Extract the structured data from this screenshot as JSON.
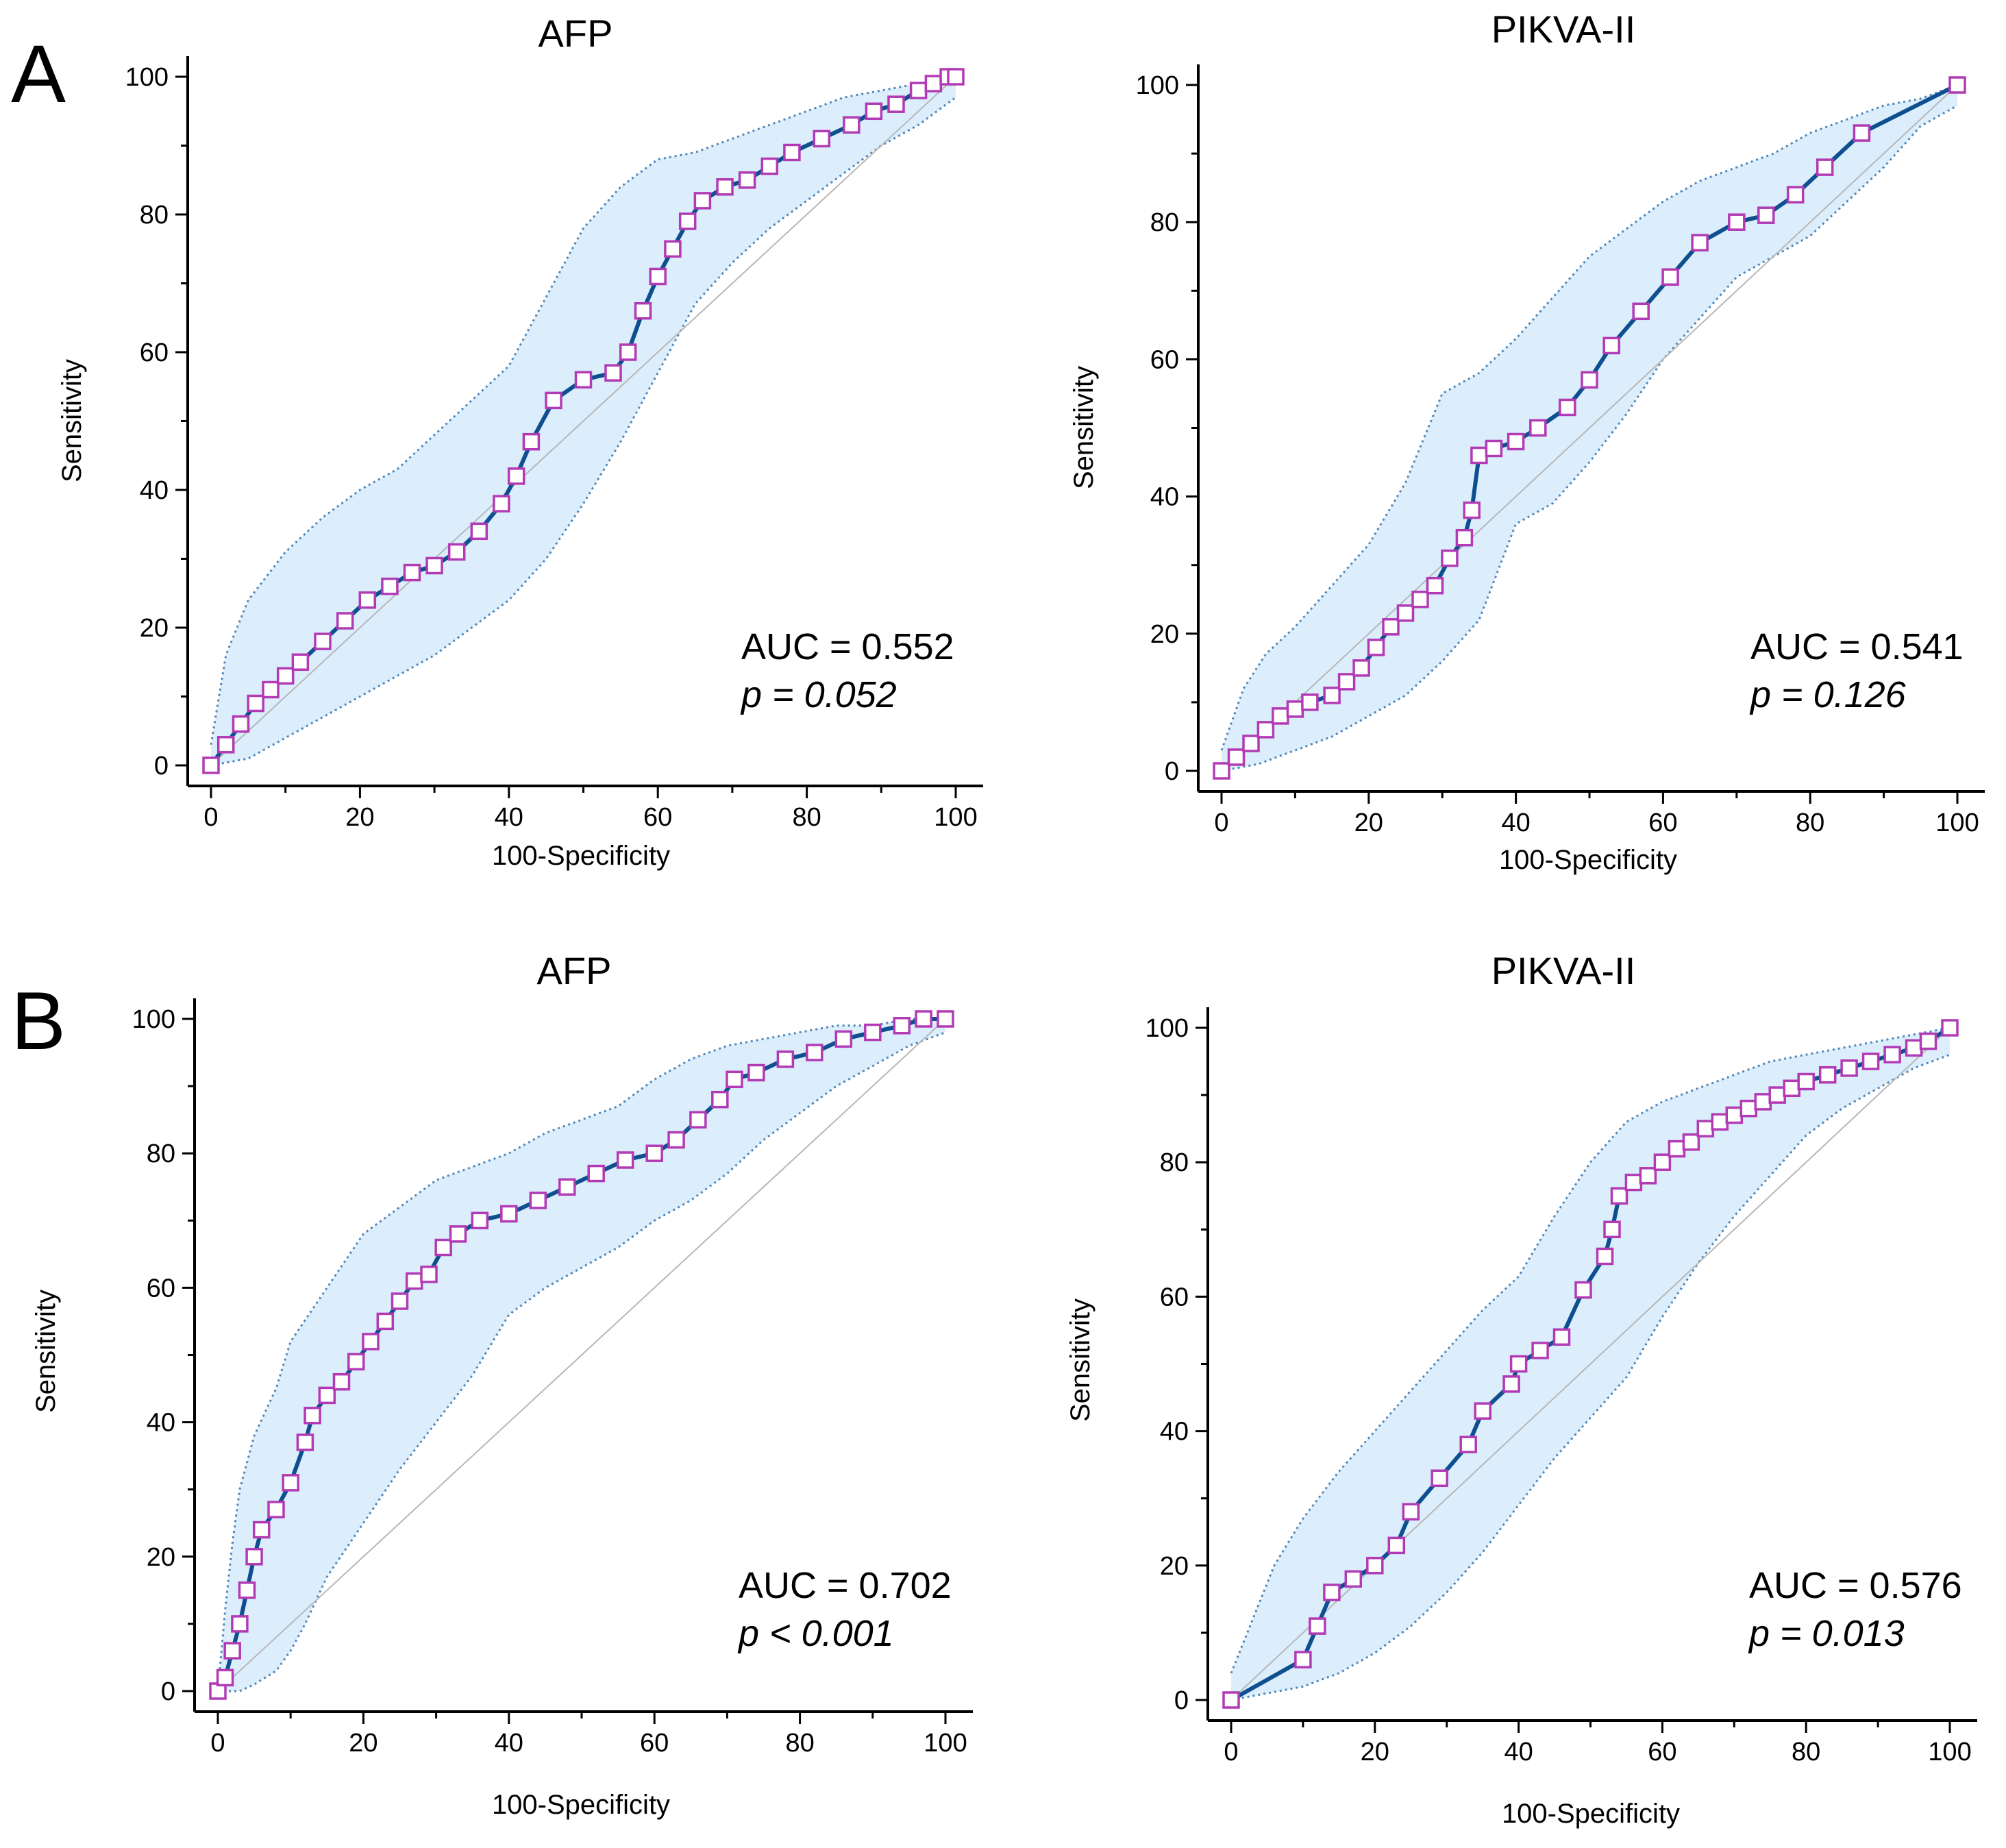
{
  "panel_letters": {
    "a": "A",
    "b": "B"
  },
  "colors": {
    "band_fill": "#dceefc",
    "band_edge": "#4f86b8",
    "curve": "#0e4f8f",
    "marker": "#b23bb5",
    "diagonal": "#b7b7b7"
  },
  "chart_data": [
    {
      "type": "line",
      "title": "AFP",
      "xlabel": "100-Specificity",
      "ylabel": "Sensitivity",
      "xlim": [
        0,
        100
      ],
      "ylim": [
        0,
        100
      ],
      "xticks": [
        "0",
        "20",
        "40",
        "60",
        "80",
        "100"
      ],
      "yticks": [
        "0",
        "20",
        "40",
        "60",
        "80",
        "100"
      ],
      "auc_text": "AUC = 0.552",
      "p_text": "p = 0.052",
      "roc": {
        "x": [
          0,
          2,
          4,
          6,
          8,
          10,
          12,
          15,
          18,
          21,
          24,
          27,
          30,
          33,
          36,
          39,
          41,
          43,
          46,
          50,
          54,
          56,
          58,
          60,
          62,
          64,
          66,
          69,
          72,
          75,
          78,
          82,
          86,
          89,
          92,
          95,
          97,
          99,
          100
        ],
        "y": [
          0,
          3,
          6,
          9,
          11,
          13,
          15,
          18,
          21,
          24,
          26,
          28,
          29,
          31,
          34,
          38,
          42,
          47,
          53,
          56,
          57,
          60,
          66,
          71,
          75,
          79,
          82,
          84,
          85,
          87,
          89,
          91,
          93,
          95,
          96,
          98,
          99,
          100,
          100
        ]
      },
      "ci_upper": {
        "x": [
          0,
          2,
          5,
          10,
          15,
          20,
          25,
          30,
          35,
          40,
          45,
          50,
          55,
          60,
          65,
          70,
          75,
          80,
          85,
          90,
          95,
          100
        ],
        "y": [
          3,
          16,
          24,
          31,
          36,
          40,
          43,
          48,
          53,
          58,
          68,
          78,
          84,
          88,
          89,
          91,
          93,
          95,
          97,
          98,
          99,
          100
        ]
      },
      "ci_lower": {
        "x": [
          0,
          5,
          10,
          15,
          20,
          25,
          30,
          35,
          40,
          45,
          50,
          55,
          60,
          65,
          70,
          75,
          80,
          85,
          90,
          95,
          100
        ],
        "y": [
          0,
          1,
          4,
          7,
          10,
          13,
          16,
          20,
          24,
          30,
          38,
          47,
          57,
          67,
          73,
          78,
          82,
          86,
          90,
          93,
          97
        ]
      }
    },
    {
      "type": "line",
      "title": "PIKVA-II",
      "xlabel": "100-Specificity",
      "ylabel": "Sensitivity",
      "xlim": [
        0,
        100
      ],
      "ylim": [
        0,
        100
      ],
      "xticks": [
        "0",
        "20",
        "40",
        "60",
        "80",
        "100"
      ],
      "yticks": [
        "0",
        "20",
        "40",
        "60",
        "80",
        "100"
      ],
      "auc_text": "AUC = 0.541",
      "p_text": "p = 0.126",
      "roc": {
        "x": [
          0,
          2,
          4,
          6,
          8,
          10,
          12,
          15,
          17,
          19,
          21,
          23,
          25,
          27,
          29,
          31,
          33,
          34,
          35,
          37,
          40,
          43,
          47,
          50,
          53,
          57,
          61,
          65,
          70,
          74,
          78,
          82,
          87,
          100
        ],
        "y": [
          0,
          2,
          4,
          6,
          8,
          9,
          10,
          11,
          13,
          15,
          18,
          21,
          23,
          25,
          27,
          31,
          34,
          38,
          46,
          47,
          48,
          50,
          53,
          57,
          62,
          67,
          72,
          77,
          80,
          81,
          84,
          88,
          93,
          100
        ]
      },
      "ci_upper": {
        "x": [
          0,
          3,
          6,
          10,
          15,
          20,
          25,
          30,
          35,
          40,
          45,
          50,
          55,
          60,
          65,
          70,
          75,
          80,
          85,
          90,
          95,
          100
        ],
        "y": [
          3,
          12,
          17,
          21,
          27,
          33,
          42,
          55,
          58,
          63,
          69,
          75,
          79,
          83,
          86,
          88,
          90,
          93,
          95,
          97,
          98,
          100
        ]
      },
      "ci_lower": {
        "x": [
          0,
          5,
          10,
          15,
          20,
          25,
          30,
          35,
          40,
          45,
          50,
          55,
          60,
          65,
          70,
          75,
          80,
          85,
          90,
          95,
          100
        ],
        "y": [
          0,
          1,
          3,
          5,
          8,
          11,
          16,
          22,
          36,
          39,
          45,
          52,
          60,
          66,
          72,
          75,
          78,
          83,
          88,
          94,
          97
        ]
      }
    },
    {
      "type": "line",
      "title": "AFP",
      "xlabel": "100-Specificity",
      "ylabel": "Sensitivity",
      "xlim": [
        0,
        100
      ],
      "ylim": [
        0,
        100
      ],
      "xticks": [
        "0",
        "20",
        "40",
        "60",
        "80",
        "100"
      ],
      "yticks": [
        "0",
        "20",
        "40",
        "60",
        "80",
        "100"
      ],
      "auc_text": "AUC = 0.702",
      "p_text": "p < 0.001",
      "roc": {
        "x": [
          0,
          1,
          2,
          3,
          4,
          5,
          6,
          8,
          10,
          12,
          13,
          15,
          17,
          19,
          21,
          23,
          25,
          27,
          29,
          31,
          33,
          36,
          40,
          44,
          48,
          52,
          56,
          60,
          63,
          66,
          69,
          71,
          74,
          78,
          82,
          86,
          90,
          94,
          97,
          100
        ],
        "y": [
          0,
          2,
          6,
          10,
          15,
          20,
          24,
          27,
          31,
          37,
          41,
          44,
          46,
          49,
          52,
          55,
          58,
          61,
          62,
          66,
          68,
          70,
          71,
          73,
          75,
          77,
          79,
          80,
          82,
          85,
          88,
          91,
          92,
          94,
          95,
          97,
          98,
          99,
          100,
          100
        ]
      },
      "ci_upper": {
        "x": [
          0,
          1,
          2,
          3,
          5,
          8,
          10,
          15,
          20,
          25,
          30,
          35,
          40,
          45,
          50,
          55,
          60,
          65,
          70,
          75,
          80,
          85,
          90,
          95,
          100
        ],
        "y": [
          0,
          12,
          22,
          30,
          38,
          45,
          52,
          60,
          68,
          72,
          76,
          78,
          80,
          83,
          85,
          87,
          91,
          94,
          96,
          97,
          98,
          99,
          99,
          100,
          100
        ]
      },
      "ci_lower": {
        "x": [
          0,
          3,
          5,
          8,
          10,
          12,
          15,
          20,
          25,
          30,
          35,
          40,
          45,
          50,
          55,
          60,
          65,
          70,
          75,
          80,
          85,
          90,
          95,
          100
        ],
        "y": [
          0,
          0,
          1,
          3,
          6,
          10,
          17,
          25,
          33,
          40,
          47,
          56,
          60,
          63,
          66,
          70,
          73,
          77,
          82,
          86,
          90,
          93,
          96,
          98
        ]
      }
    },
    {
      "type": "line",
      "title": "PIKVA-II",
      "xlabel": "100-Specificity",
      "ylabel": "Sensitivity",
      "xlim": [
        0,
        100
      ],
      "ylim": [
        0,
        100
      ],
      "xticks": [
        "0",
        "20",
        "40",
        "60",
        "80",
        "100"
      ],
      "yticks": [
        "0",
        "20",
        "40",
        "60",
        "80",
        "100"
      ],
      "auc_text": "AUC = 0.576",
      "p_text": "p = 0.013",
      "roc": {
        "x": [
          0,
          10,
          12,
          14,
          17,
          20,
          23,
          25,
          29,
          33,
          35,
          39,
          40,
          43,
          46,
          49,
          52,
          53,
          54,
          56,
          58,
          60,
          62,
          64,
          66,
          68,
          70,
          72,
          74,
          76,
          78,
          80,
          83,
          86,
          89,
          92,
          95,
          97,
          100
        ],
        "y": [
          0,
          6,
          11,
          16,
          18,
          20,
          23,
          28,
          33,
          38,
          43,
          47,
          50,
          52,
          54,
          61,
          66,
          70,
          75,
          77,
          78,
          80,
          82,
          83,
          85,
          86,
          87,
          88,
          89,
          90,
          91,
          92,
          93,
          94,
          95,
          96,
          97,
          98,
          100
        ]
      },
      "ci_upper": {
        "x": [
          0,
          3,
          6,
          10,
          15,
          20,
          25,
          30,
          35,
          40,
          45,
          50,
          55,
          60,
          65,
          70,
          75,
          80,
          85,
          90,
          95,
          100
        ],
        "y": [
          4,
          12,
          20,
          27,
          34,
          40,
          46,
          52,
          58,
          63,
          72,
          80,
          86,
          89,
          91,
          93,
          95,
          96,
          97,
          98,
          99,
          100
        ]
      },
      "ci_lower": {
        "x": [
          0,
          5,
          10,
          15,
          20,
          25,
          30,
          35,
          40,
          45,
          50,
          55,
          60,
          65,
          70,
          75,
          80,
          85,
          90,
          95,
          100
        ],
        "y": [
          0,
          1,
          2,
          4,
          7,
          11,
          16,
          22,
          29,
          36,
          42,
          48,
          57,
          65,
          72,
          78,
          84,
          88,
          91,
          94,
          96
        ]
      }
    }
  ]
}
